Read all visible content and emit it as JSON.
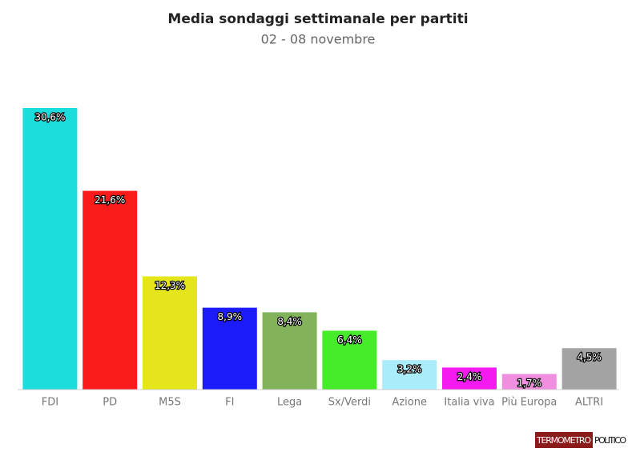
{
  "chart_data": {
    "type": "bar",
    "title": "Media sondaggi settimanale per partiti",
    "subtitle": "02 - 08 novembre",
    "categories": [
      "FDI",
      "PD",
      "M5S",
      "FI",
      "Lega",
      "Sx/Verdi",
      "Azione",
      "Italia viva",
      "Più Europa",
      "ALTRI"
    ],
    "values": [
      30.6,
      21.6,
      12.3,
      8.9,
      8.4,
      6.4,
      3.2,
      2.4,
      1.7,
      4.5
    ],
    "value_labels": [
      "30,6%",
      "21,6%",
      "12,3%",
      "8,9%",
      "8,4%",
      "6,4%",
      "3,2%",
      "2,4%",
      "1,7%",
      "4,5%"
    ],
    "colors": [
      "#1ddcdc",
      "#fc1b1b",
      "#e5e51b",
      "#1b1bfc",
      "#82b35a",
      "#46ec2a",
      "#a9ecfa",
      "#f51bf0",
      "#f08fdf",
      "#a3a3a3"
    ],
    "logo": [
      "TERMOMETRO",
      "POLITICO"
    ]
  }
}
